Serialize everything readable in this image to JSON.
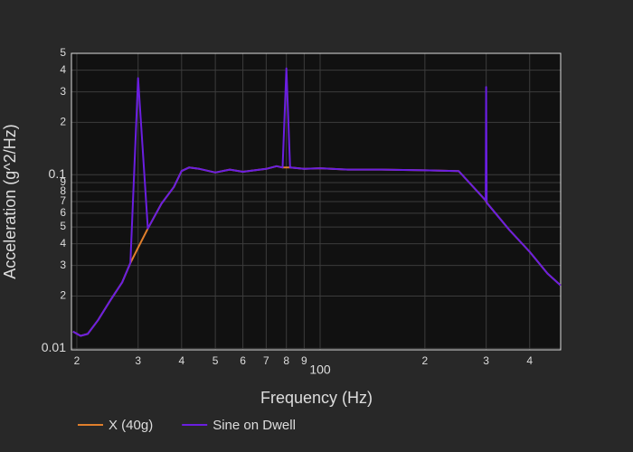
{
  "chart_data": {
    "type": "line",
    "xlabel": "Frequency (Hz)",
    "ylabel": "Acceleration (g^2/Hz)",
    "xscale": "log",
    "yscale": "log",
    "grid": true,
    "legend": "bottom",
    "x": [
      19.5,
      20.5,
      21.5,
      23,
      25,
      27,
      28.5,
      30,
      32,
      35,
      38,
      40,
      42,
      45,
      50,
      55,
      60,
      70,
      75,
      78,
      80,
      82,
      90,
      100,
      120,
      150,
      200,
      250,
      299,
      300,
      301,
      350,
      400,
      450,
      491
    ],
    "series": [
      {
        "name": "X (40g)",
        "color": "#e07f2c",
        "values": [
          0.0125,
          0.0118,
          0.0121,
          0.0145,
          0.019,
          0.024,
          0.031,
          0.038,
          0.049,
          0.068,
          0.085,
          0.105,
          0.11,
          0.108,
          0.103,
          0.107,
          0.104,
          0.108,
          0.112,
          0.11,
          0.11,
          0.11,
          0.108,
          0.109,
          0.107,
          0.107,
          0.106,
          0.105,
          0.071,
          0.07,
          0.069,
          0.048,
          0.036,
          0.027,
          0.023
        ]
      },
      {
        "name": "Sine on Dwell",
        "color": "#6a1ee0",
        "values": [
          0.0125,
          0.0118,
          0.0121,
          0.0145,
          0.019,
          0.024,
          0.031,
          0.36,
          0.049,
          0.068,
          0.085,
          0.105,
          0.11,
          0.108,
          0.103,
          0.107,
          0.104,
          0.108,
          0.112,
          0.11,
          0.41,
          0.11,
          0.108,
          0.109,
          0.107,
          0.107,
          0.106,
          0.105,
          0.071,
          0.32,
          0.069,
          0.048,
          0.036,
          0.027,
          0.023
        ]
      }
    ],
    "xlim": [
      19.3,
      491
    ],
    "xticks": [
      {
        "value": 20,
        "label": "2"
      },
      {
        "value": 30,
        "label": "3"
      },
      {
        "value": 40,
        "label": "4"
      },
      {
        "value": 50,
        "label": "5"
      },
      {
        "value": 60,
        "label": "6"
      },
      {
        "value": 70,
        "label": "7"
      },
      {
        "value": 80,
        "label": "8"
      },
      {
        "value": 90,
        "label": "9"
      },
      100,
      {
        "value": 200,
        "label": "2"
      },
      {
        "value": 300,
        "label": "3"
      },
      {
        "value": 400,
        "label": "4"
      }
    ],
    "ylim": [
      0.0098,
      0.5
    ],
    "yticks": [
      0.01,
      {
        "value": 0.02,
        "label": "2"
      },
      {
        "value": 0.03,
        "label": "3"
      },
      {
        "value": 0.04,
        "label": "4"
      },
      {
        "value": 0.05,
        "label": "5"
      },
      {
        "value": 0.06,
        "label": "6"
      },
      {
        "value": 0.07,
        "label": "7"
      },
      {
        "value": 0.08,
        "label": "8"
      },
      {
        "value": 0.09,
        "label": "9"
      },
      0.1,
      {
        "value": 0.2,
        "label": "2"
      },
      {
        "value": 0.3,
        "label": "3"
      },
      {
        "value": 0.4,
        "label": "4"
      },
      {
        "value": 0.5,
        "label": "5"
      }
    ]
  }
}
